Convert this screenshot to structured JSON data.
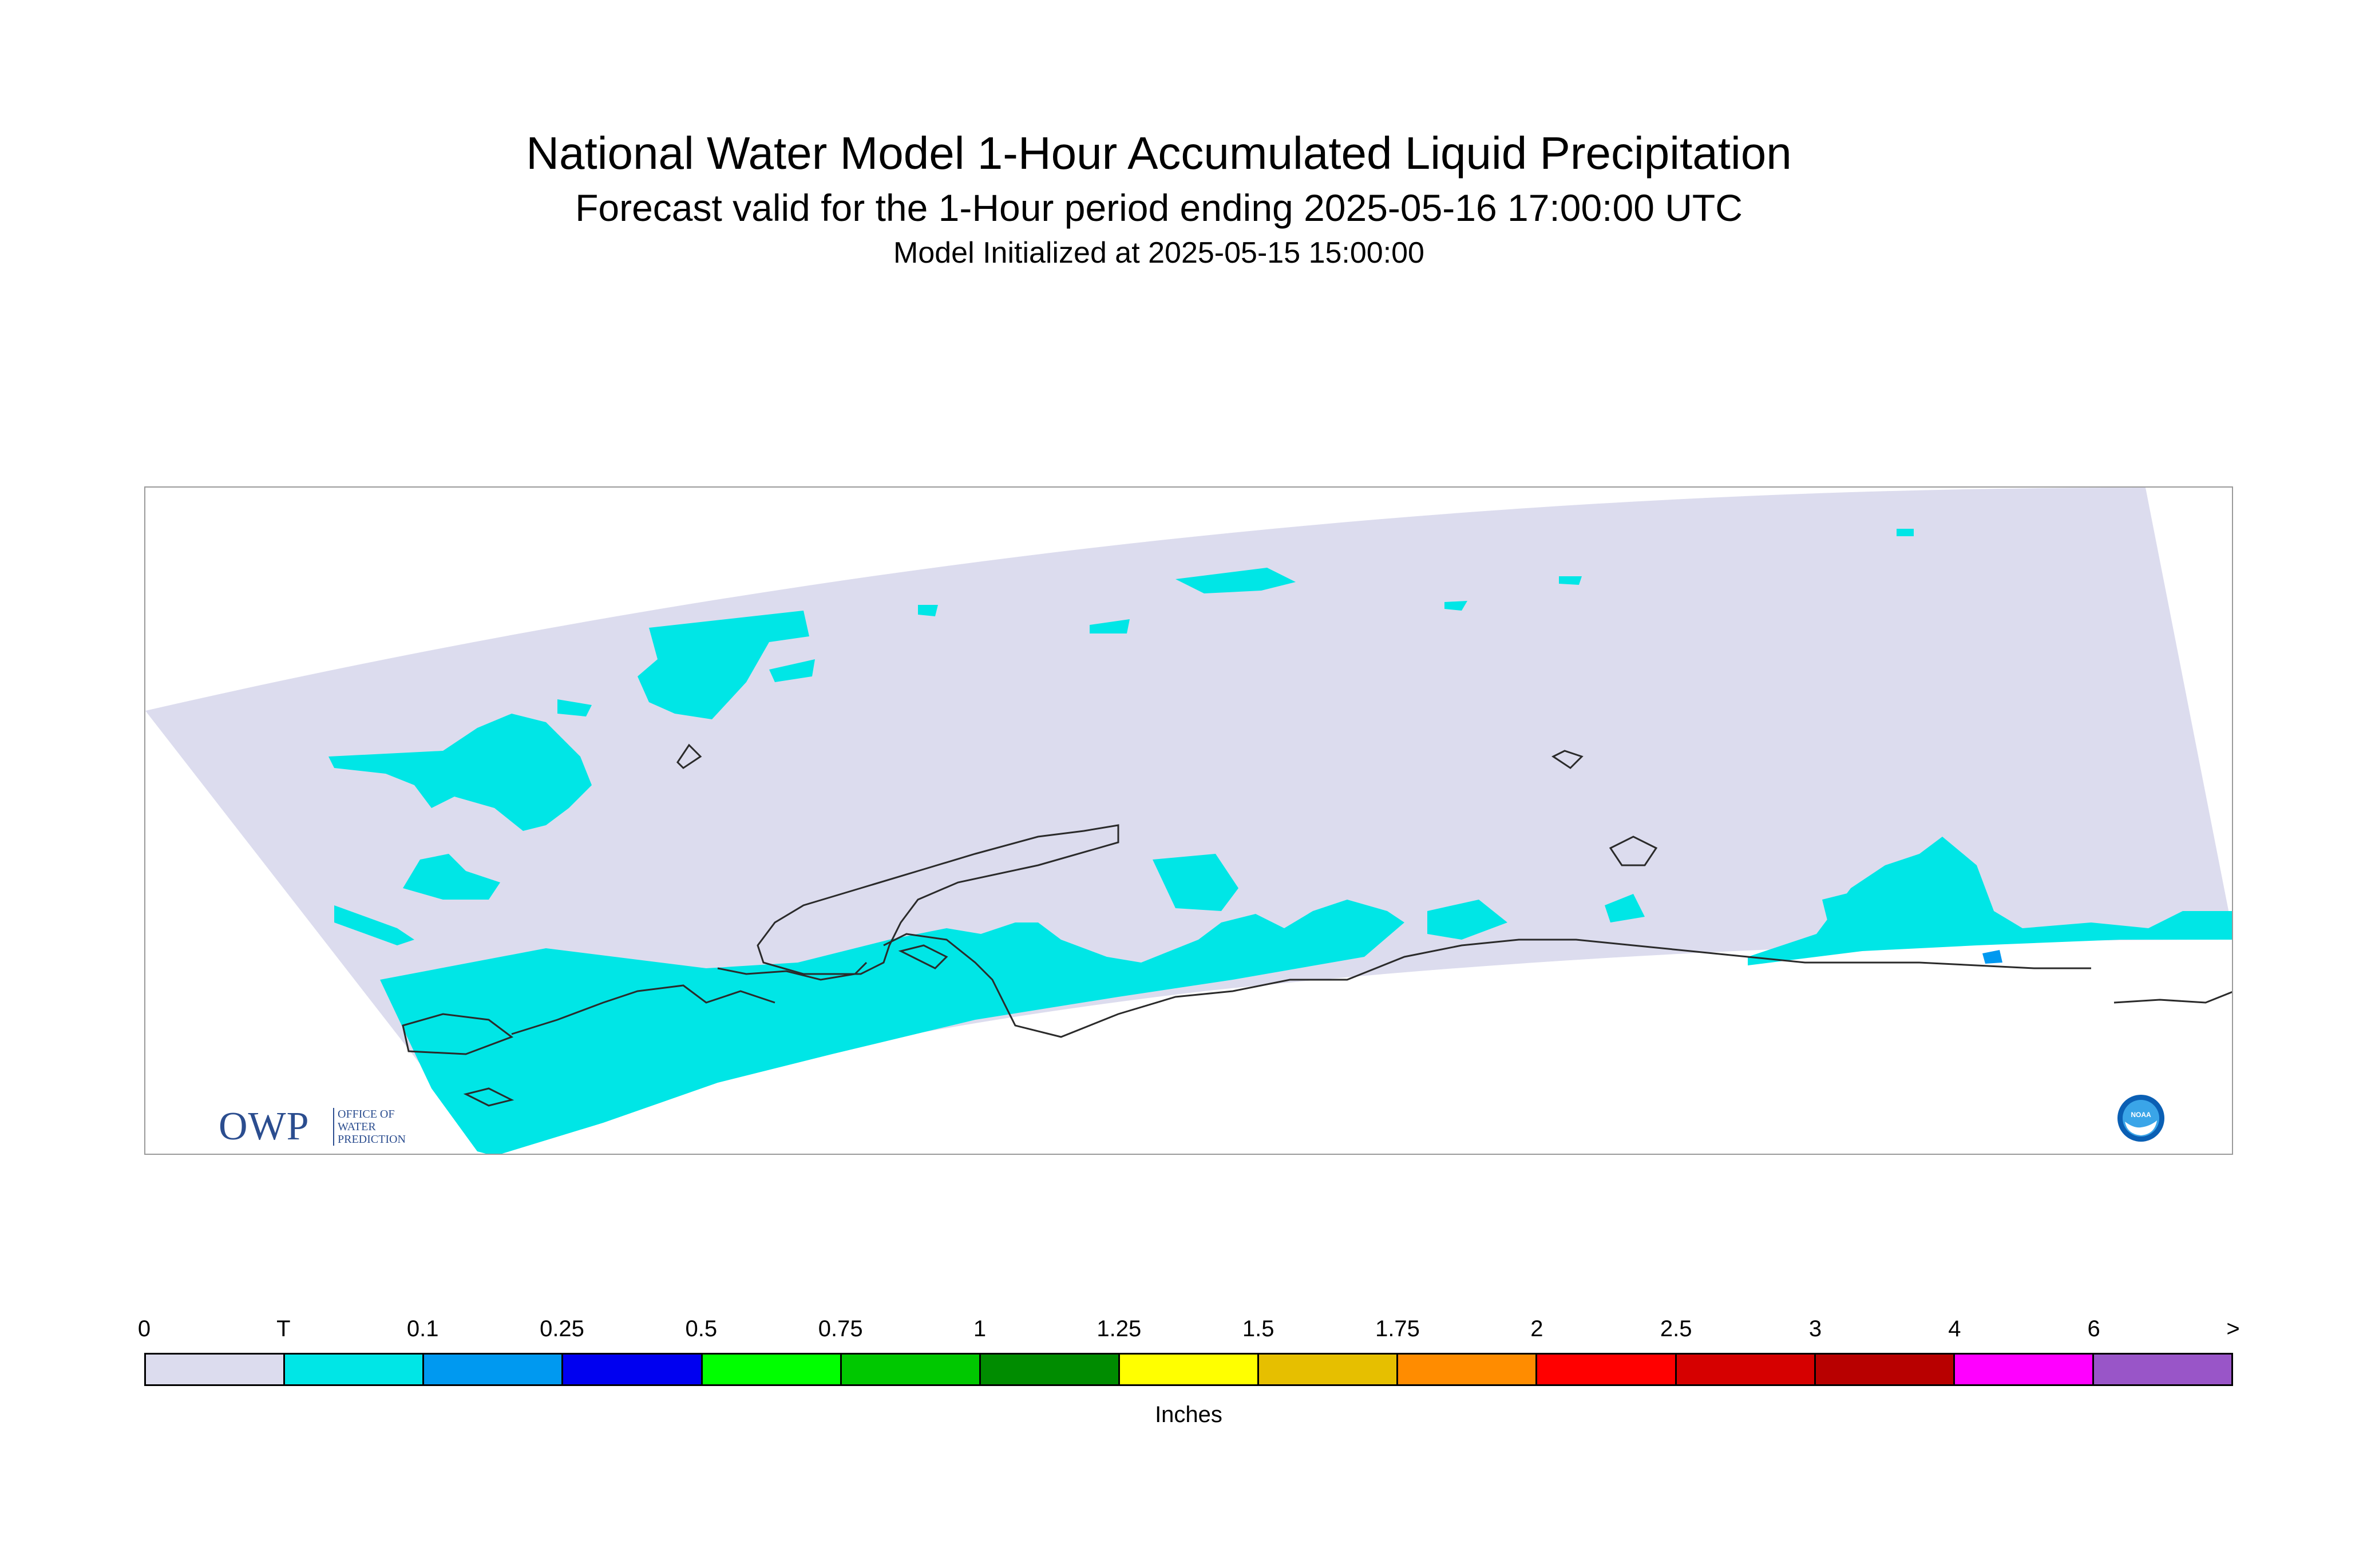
{
  "header": {
    "title": "National Water Model 1-Hour Accumulated Liquid Precipitation",
    "subtitle": "Forecast valid for the 1-Hour period ending 2025-05-16 17:00:00 UTC",
    "init": "Model Initialized at 2025-05-15 15:00:00"
  },
  "map": {
    "region_fill": "#dcdcee",
    "coast_color": "#2a2a2a",
    "trace_color": "#00e6e6",
    "light_blue_color": "#0099f0"
  },
  "logos": {
    "owp_main": "OWP",
    "owp_sub": "OFFICE OF WATER PREDICTION",
    "noaa": "NOAA"
  },
  "legend": {
    "labels": [
      "0",
      "T",
      "0.1",
      "0.25",
      "0.5",
      "0.75",
      "1",
      "1.25",
      "1.5",
      "1.75",
      "2",
      "2.5",
      "3",
      "4",
      "6",
      ">"
    ],
    "colors": [
      "#dcdcee",
      "#00e6e6",
      "#0099f0",
      "#0000f0",
      "#00ff00",
      "#00c800",
      "#008c00",
      "#ffff00",
      "#e6bf00",
      "#ff8c00",
      "#ff0000",
      "#d60000",
      "#b80000",
      "#ff00ff",
      "#9955c8"
    ],
    "units": "Inches"
  }
}
